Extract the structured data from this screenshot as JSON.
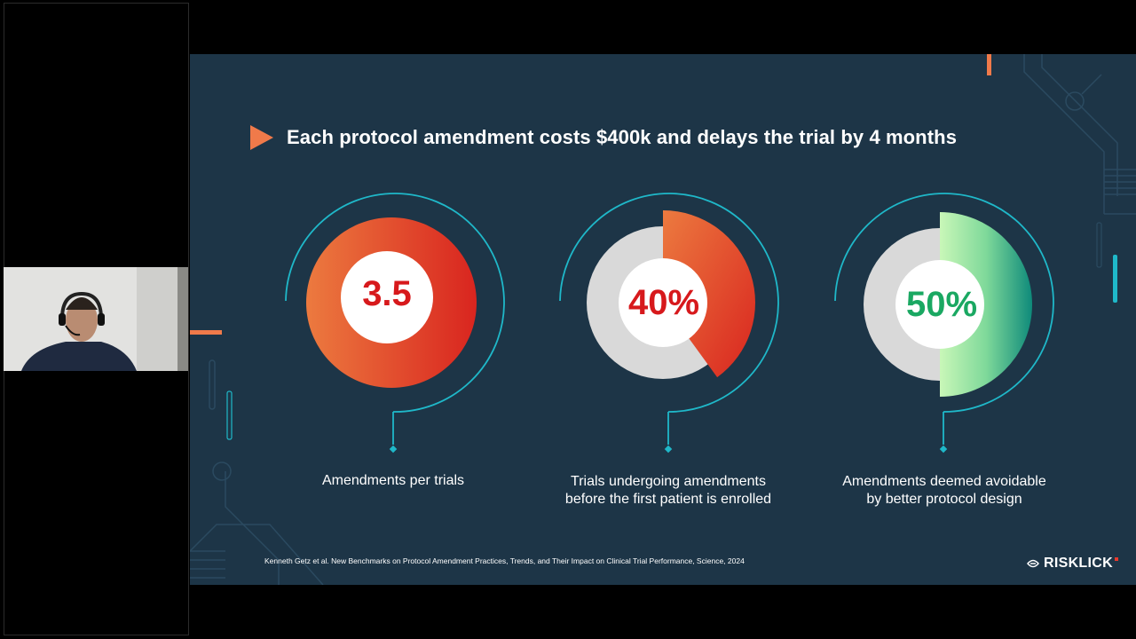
{
  "slide": {
    "title": "Each protocol amendment costs $400k and delays the trial by 4 months",
    "stats": [
      {
        "value": "3.5",
        "label": "Amendments per trials",
        "value_color": "#d7191c"
      },
      {
        "value": "40%",
        "label_line1": "Trials undergoing amendments",
        "label_line2": "before the first patient is enrolled",
        "value_color": "#d7191c",
        "fraction": 0.4
      },
      {
        "value": "50%",
        "label_line1": "Amendments deemed avoidable",
        "label_line2": "by better protocol design",
        "value_color": "#1aa862",
        "fraction": 0.5
      }
    ],
    "citation": "Kenneth Getz et al. New Benchmarks on Protocol Amendment Practices, Trends, and Their Impact on Clinical Trial Performance, Science, 2024",
    "logo_text": "RISKLICK",
    "colors": {
      "background": "#1d3547",
      "accent_orange": "#f07a4a",
      "accent_teal": "#1fb8c9",
      "track_gray": "#d9d9d9"
    }
  }
}
